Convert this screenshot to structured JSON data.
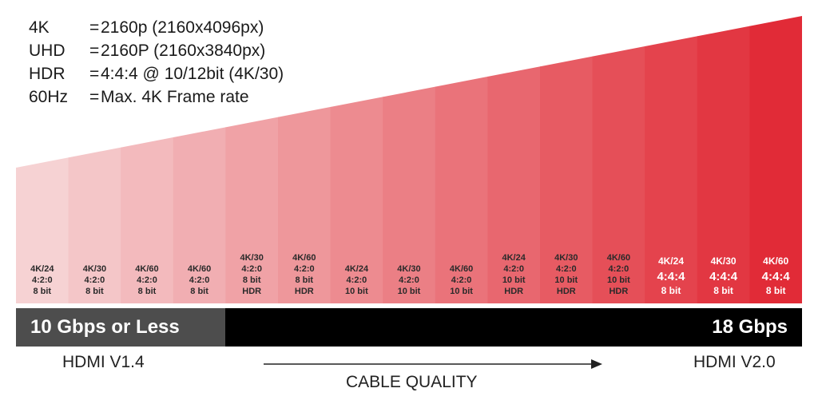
{
  "definitions": [
    {
      "term": "4K",
      "eq": "=",
      "value": "2160p (2160x4096px)"
    },
    {
      "term": "UHD",
      "eq": "=",
      "value": "2160P (2160x3840px)"
    },
    {
      "term": "HDR",
      "eq": "=",
      "value": "4:4:4 @ 10/12bit (4K/30)"
    },
    {
      "term": "60Hz",
      "eq": "=",
      "value": "Max. 4K Frame rate"
    }
  ],
  "formats": [
    {
      "lines": [
        "4K/24",
        "4:2:0",
        "8 bit"
      ],
      "fill": "#f6d2d3",
      "text_color": "dark"
    },
    {
      "lines": [
        "4K/30",
        "4:2:0",
        "8 bit"
      ],
      "fill": "#f4c6c8",
      "text_color": "dark"
    },
    {
      "lines": [
        "4K/60",
        "4:2:0",
        "8 bit"
      ],
      "fill": "#f3babd",
      "text_color": "dark"
    },
    {
      "lines": [
        "4K/60",
        "4:2:0",
        "8 bit"
      ],
      "fill": "#f1aeb2",
      "text_color": "dark"
    },
    {
      "lines": [
        "4K/30",
        "4:2:0",
        "8 bit",
        "HDR"
      ],
      "fill": "#f0a2a6",
      "text_color": "dark"
    },
    {
      "lines": [
        "4K/60",
        "4:2:0",
        "8 bit",
        "HDR"
      ],
      "fill": "#ee979b",
      "text_color": "dark"
    },
    {
      "lines": [
        "4K/24",
        "4:2:0",
        "10 bit"
      ],
      "fill": "#ed8b90",
      "text_color": "dark"
    },
    {
      "lines": [
        "4K/30",
        "4:2:0",
        "10 bit"
      ],
      "fill": "#eb7f85",
      "text_color": "dark"
    },
    {
      "lines": [
        "4K/60",
        "4:2:0",
        "10 bit"
      ],
      "fill": "#ea737a",
      "text_color": "dark"
    },
    {
      "lines": [
        "4K/24",
        "4:2:0",
        "10 bit",
        "HDR"
      ],
      "fill": "#e8676f",
      "text_color": "dark"
    },
    {
      "lines": [
        "4K/30",
        "4:2:0",
        "10 bit",
        "HDR"
      ],
      "fill": "#e75b63",
      "text_color": "dark"
    },
    {
      "lines": [
        "4K/60",
        "4:2:0",
        "10 bit",
        "HDR"
      ],
      "fill": "#e54f58",
      "text_color": "dark"
    },
    {
      "lines": [
        "4K/24",
        "4:4:4",
        "8 bit"
      ],
      "fill": "#e4434d",
      "text_color": "light"
    },
    {
      "lines": [
        "4K/30",
        "4:4:4",
        "8 bit"
      ],
      "fill": "#e23742",
      "text_color": "light"
    },
    {
      "lines": [
        "4K/60",
        "4:4:4",
        "8 bit"
      ],
      "fill": "#e12b37",
      "text_color": "light"
    }
  ],
  "bars": {
    "left_label": "10 Gbps or Less",
    "right_label": "18 Gbps"
  },
  "footer": {
    "left": "HDMI V1.4",
    "right": "HDMI V2.0",
    "center": "CABLE QUALITY"
  }
}
